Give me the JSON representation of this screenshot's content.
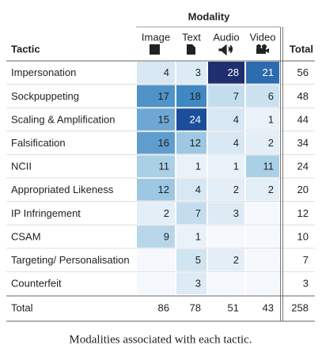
{
  "table": {
    "group_header": "Modality",
    "columns": [
      "Tactic",
      "Image",
      "Text",
      "Audio",
      "Video",
      "Total"
    ],
    "rows": [
      [
        "Impersonation",
        4,
        3,
        28,
        21,
        56
      ],
      [
        "Sockpuppeting",
        17,
        18,
        7,
        6,
        48
      ],
      [
        "Scaling & Amplification",
        15,
        24,
        4,
        1,
        44
      ],
      [
        "Falsification",
        16,
        12,
        4,
        2,
        34
      ],
      [
        "NCII",
        11,
        1,
        1,
        11,
        24
      ],
      [
        "Appropriated Likeness",
        12,
        4,
        2,
        2,
        20
      ],
      [
        "IP Infringement",
        2,
        7,
        3,
        null,
        12
      ],
      [
        "CSAM",
        9,
        1,
        null,
        null,
        10
      ],
      [
        "Targeting/ Personalisation",
        null,
        5,
        2,
        null,
        7
      ],
      [
        "Counterfeit",
        null,
        3,
        null,
        null,
        3
      ]
    ],
    "total": [
      "Total",
      86,
      78,
      51,
      43,
      258
    ]
  },
  "caption": "Modalities associated with each tactic."
}
